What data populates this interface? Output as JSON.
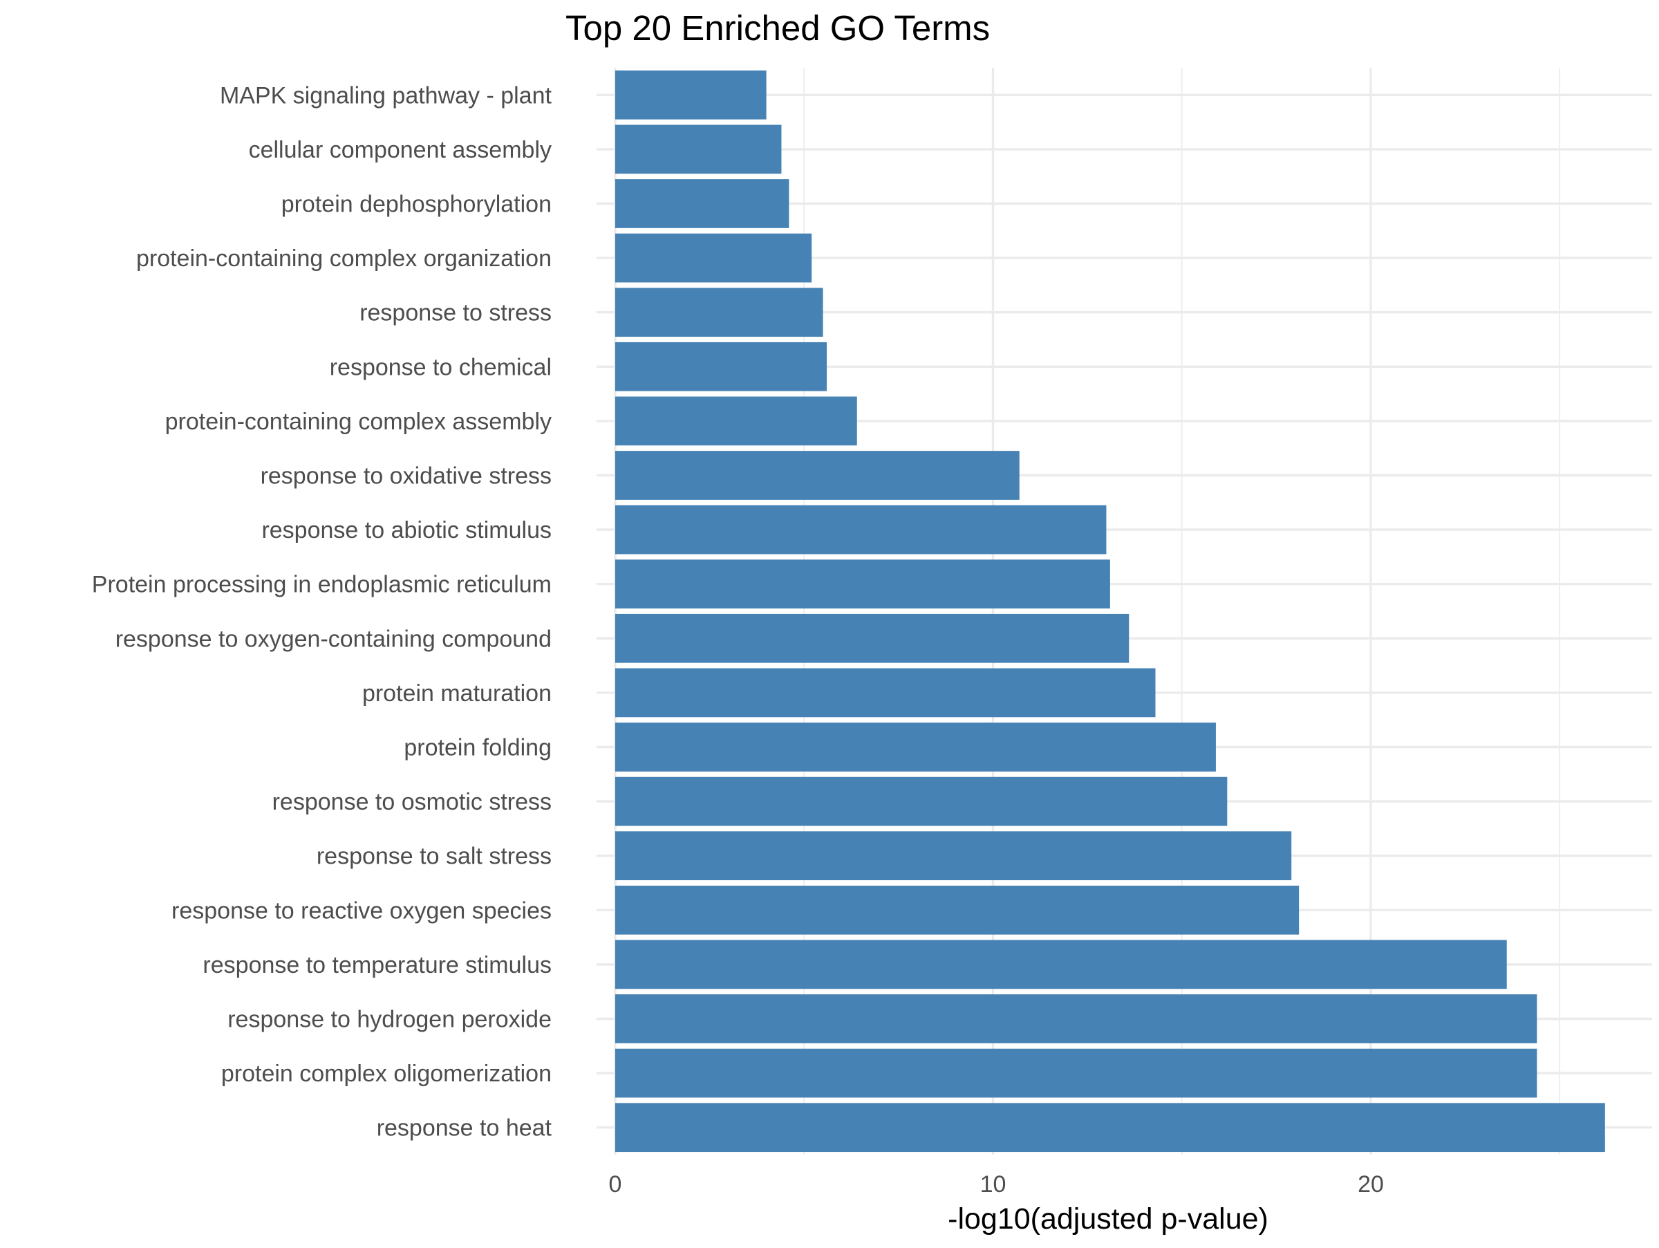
{
  "chart_data": {
    "type": "bar",
    "orientation": "horizontal",
    "title": "Top 20 Enriched GO Terms",
    "xlabel": "-log10(adjusted p-value)",
    "ylabel": "",
    "xlim": [
      0,
      27
    ],
    "xticks": [
      0,
      10,
      20
    ],
    "grid": true,
    "bar_color": "#4682B4",
    "categories": [
      "MAPK signaling pathway - plant",
      "cellular component assembly",
      "protein dephosphorylation",
      "protein-containing complex organization",
      "response to stress",
      "response to chemical",
      "protein-containing complex assembly",
      "response to oxidative stress",
      "response to abiotic stimulus",
      "Protein processing in endoplasmic reticulum",
      "response to oxygen-containing compound",
      "protein maturation",
      "protein folding",
      "response to osmotic stress",
      "response to salt stress",
      "response to reactive oxygen species",
      "response to temperature stimulus",
      "response to hydrogen peroxide",
      "protein complex oligomerization",
      "response to heat"
    ],
    "values": [
      4.0,
      4.4,
      4.6,
      5.2,
      5.5,
      5.6,
      6.4,
      10.7,
      13.0,
      13.1,
      13.6,
      14.3,
      15.9,
      16.2,
      17.9,
      18.1,
      23.6,
      24.4,
      24.4,
      26.2
    ]
  }
}
